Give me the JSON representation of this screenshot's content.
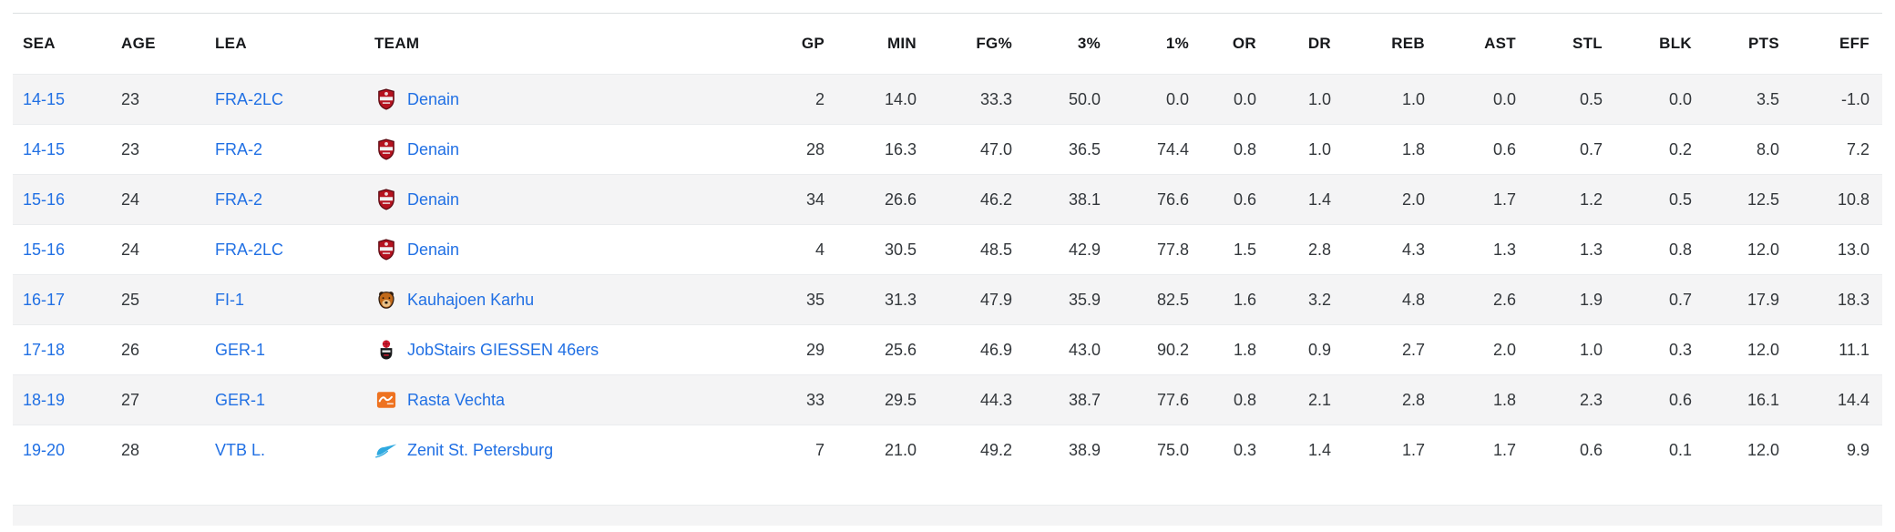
{
  "colors": {
    "link_blue": "#2170e4",
    "header_text": "#17191c",
    "body_text": "#33373b",
    "row_stripe": "#f4f4f5",
    "row_border": "#eaecee",
    "table_top_border": "#dcdfe1",
    "background": "#ffffff"
  },
  "table": {
    "columns": [
      {
        "key": "sea",
        "label": "SEA",
        "align": "left",
        "link": true
      },
      {
        "key": "age",
        "label": "AGE",
        "align": "left",
        "link": false
      },
      {
        "key": "lea",
        "label": "LEA",
        "align": "left",
        "link": true
      },
      {
        "key": "team",
        "label": "TEAM",
        "align": "left",
        "link": true
      },
      {
        "key": "gp",
        "label": "GP",
        "align": "right",
        "link": false
      },
      {
        "key": "min",
        "label": "MIN",
        "align": "right",
        "link": false
      },
      {
        "key": "fg_pct",
        "label": "FG%",
        "align": "right",
        "link": false
      },
      {
        "key": "three_pct",
        "label": "3%",
        "align": "right",
        "link": false
      },
      {
        "key": "one_pct",
        "label": "1%",
        "align": "right",
        "link": false
      },
      {
        "key": "or",
        "label": "OR",
        "align": "right",
        "link": false
      },
      {
        "key": "dr",
        "label": "DR",
        "align": "right",
        "link": false
      },
      {
        "key": "reb",
        "label": "REB",
        "align": "right",
        "link": false
      },
      {
        "key": "ast",
        "label": "AST",
        "align": "right",
        "link": false
      },
      {
        "key": "stl",
        "label": "STL",
        "align": "right",
        "link": false
      },
      {
        "key": "blk",
        "label": "BLK",
        "align": "right",
        "link": false
      },
      {
        "key": "pts",
        "label": "PTS",
        "align": "right",
        "link": false
      },
      {
        "key": "eff",
        "label": "EFF",
        "align": "right",
        "link": false
      }
    ],
    "rows": [
      {
        "sea": "14-15",
        "age": "23",
        "lea": "FRA-2LC",
        "team": "Denain",
        "team_logo": "denain-crest-logo",
        "gp": "2",
        "min": "14.0",
        "fg_pct": "33.3",
        "three_pct": "50.0",
        "one_pct": "0.0",
        "or": "0.0",
        "dr": "1.0",
        "reb": "1.0",
        "ast": "0.0",
        "stl": "0.5",
        "blk": "0.0",
        "pts": "3.5",
        "eff": "-1.0"
      },
      {
        "sea": "14-15",
        "age": "23",
        "lea": "FRA-2",
        "team": "Denain",
        "team_logo": "denain-crest-logo",
        "gp": "28",
        "min": "16.3",
        "fg_pct": "47.0",
        "three_pct": "36.5",
        "one_pct": "74.4",
        "or": "0.8",
        "dr": "1.0",
        "reb": "1.8",
        "ast": "0.6",
        "stl": "0.7",
        "blk": "0.2",
        "pts": "8.0",
        "eff": "7.2"
      },
      {
        "sea": "15-16",
        "age": "24",
        "lea": "FRA-2",
        "team": "Denain",
        "team_logo": "denain-crest-logo",
        "gp": "34",
        "min": "26.6",
        "fg_pct": "46.2",
        "three_pct": "38.1",
        "one_pct": "76.6",
        "or": "0.6",
        "dr": "1.4",
        "reb": "2.0",
        "ast": "1.7",
        "stl": "1.2",
        "blk": "0.5",
        "pts": "12.5",
        "eff": "10.8"
      },
      {
        "sea": "15-16",
        "age": "24",
        "lea": "FRA-2LC",
        "team": "Denain",
        "team_logo": "denain-crest-logo",
        "gp": "4",
        "min": "30.5",
        "fg_pct": "48.5",
        "three_pct": "42.9",
        "one_pct": "77.8",
        "or": "1.5",
        "dr": "2.8",
        "reb": "4.3",
        "ast": "1.3",
        "stl": "1.3",
        "blk": "0.8",
        "pts": "12.0",
        "eff": "13.0"
      },
      {
        "sea": "16-17",
        "age": "25",
        "lea": "FI-1",
        "team": "Kauhajoen Karhu",
        "team_logo": "karhu-bear-logo",
        "gp": "35",
        "min": "31.3",
        "fg_pct": "47.9",
        "three_pct": "35.9",
        "one_pct": "82.5",
        "or": "1.6",
        "dr": "3.2",
        "reb": "4.8",
        "ast": "2.6",
        "stl": "1.9",
        "blk": "0.7",
        "pts": "17.9",
        "eff": "18.3"
      },
      {
        "sea": "17-18",
        "age": "26",
        "lea": "GER-1",
        "team": "JobStairs GIESSEN 46ers",
        "team_logo": "giessen-46ers-logo",
        "gp": "29",
        "min": "25.6",
        "fg_pct": "46.9",
        "three_pct": "43.0",
        "one_pct": "90.2",
        "or": "1.8",
        "dr": "0.9",
        "reb": "2.7",
        "ast": "2.0",
        "stl": "1.0",
        "blk": "0.3",
        "pts": "12.0",
        "eff": "11.1"
      },
      {
        "sea": "18-19",
        "age": "27",
        "lea": "GER-1",
        "team": "Rasta Vechta",
        "team_logo": "rasta-vechta-logo",
        "gp": "33",
        "min": "29.5",
        "fg_pct": "44.3",
        "three_pct": "38.7",
        "one_pct": "77.6",
        "or": "0.8",
        "dr": "2.1",
        "reb": "2.8",
        "ast": "1.8",
        "stl": "2.3",
        "blk": "0.6",
        "pts": "16.1",
        "eff": "14.4"
      },
      {
        "sea": "19-20",
        "age": "28",
        "lea": "VTB L.",
        "team": "Zenit St. Petersburg",
        "team_logo": "zenit-pennant-logo",
        "gp": "7",
        "min": "21.0",
        "fg_pct": "49.2",
        "three_pct": "38.9",
        "one_pct": "75.0",
        "or": "0.3",
        "dr": "1.4",
        "reb": "1.7",
        "ast": "1.7",
        "stl": "0.6",
        "blk": "0.1",
        "pts": "12.0",
        "eff": "9.9"
      }
    ]
  }
}
